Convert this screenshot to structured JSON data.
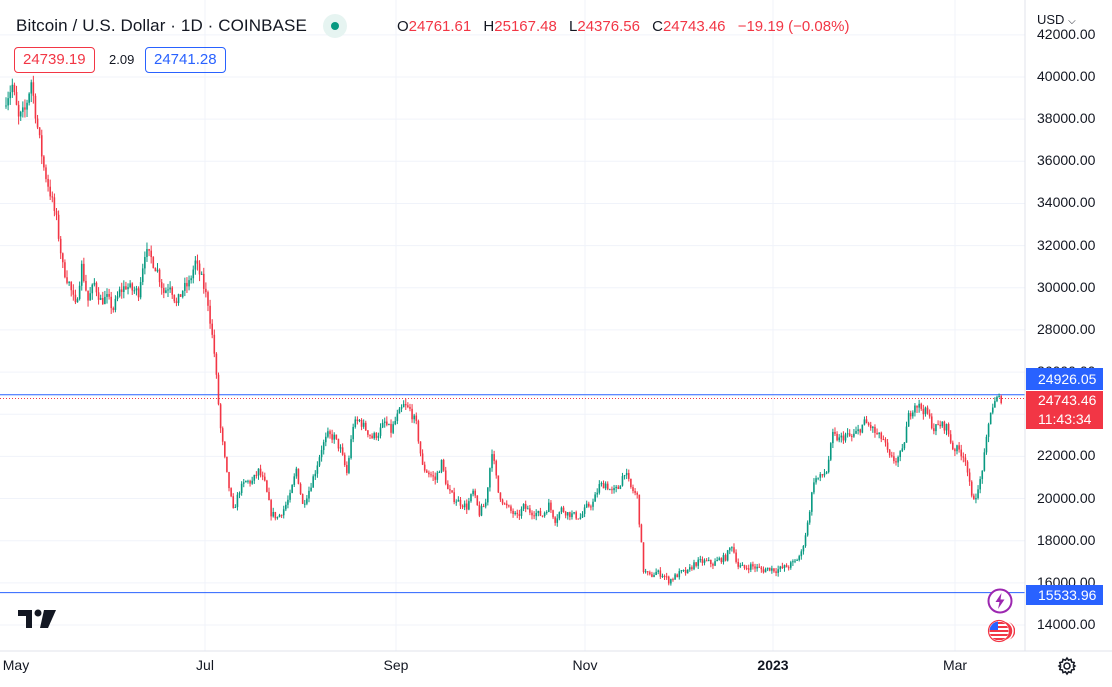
{
  "header": {
    "title": "Bitcoin / U.S. Dollar · 1D · COINBASE",
    "ohlc": {
      "o_label": "O",
      "o_value": "24761.61",
      "h_label": "H",
      "h_value": "25167.48",
      "l_label": "L",
      "l_value": "24376.56",
      "c_label": "C",
      "c_value": "24743.46",
      "change": "−19.19 (−0.08%)"
    },
    "sell_price": "24739.19",
    "spread": "2.09",
    "buy_price": "24741.28",
    "currency_selector": "USD"
  },
  "colors": {
    "up": "#089981",
    "down": "#f23645",
    "accent": "#2962ff",
    "grid": "#f0f3fa"
  },
  "price_axis": {
    "top_partial": "42000.00",
    "labels": [
      "40000.00",
      "38000.00",
      "36000.00",
      "34000.00",
      "32000.00",
      "30000.00",
      "28000.00",
      "26000.00",
      "22000.00",
      "20000.00",
      "18000.00",
      "16000.00",
      "14000.00"
    ]
  },
  "time_axis": {
    "labels": [
      "May",
      "Jul",
      "Sep",
      "Nov",
      "2023",
      "Mar"
    ]
  },
  "markers": {
    "line_blue_value": "24926.05",
    "last_price_value": "24743.46",
    "countdown": "11:43:34",
    "support_value": "15533.96"
  },
  "icons": [
    "tradingview-logo-icon",
    "lightning-icon",
    "us-flag-icon",
    "gear-icon",
    "live-status-icon",
    "chevron-down-icon"
  ],
  "chart_data": {
    "type": "candlestick",
    "title": "Bitcoin / U.S. Dollar · 1D · COINBASE",
    "xlabel": "",
    "ylabel": "",
    "x_ticks": [
      "May",
      "Jul",
      "Sep",
      "Nov",
      "2023",
      "Mar"
    ],
    "ylim": [
      13000,
      42000
    ],
    "y_ticks": [
      14000,
      16000,
      18000,
      20000,
      22000,
      24000,
      26000,
      28000,
      30000,
      32000,
      34000,
      36000,
      38000,
      40000,
      42000
    ],
    "grid": true,
    "horizontal_lines": [
      24926.05,
      15533.96
    ],
    "last_close": 24743.46,
    "close_path": [
      [
        0,
        39000
      ],
      [
        3,
        39600
      ],
      [
        6,
        38000
      ],
      [
        9,
        38400
      ],
      [
        12,
        39800
      ],
      [
        15,
        37600
      ],
      [
        18,
        35700
      ],
      [
        21,
        34500
      ],
      [
        24,
        33200
      ],
      [
        27,
        31000
      ],
      [
        30,
        30200
      ],
      [
        33,
        29100
      ],
      [
        36,
        31000
      ],
      [
        39,
        29400
      ],
      [
        42,
        30200
      ],
      [
        45,
        29400
      ],
      [
        48,
        29500
      ],
      [
        51,
        29000
      ],
      [
        54,
        29800
      ],
      [
        57,
        30100
      ],
      [
        60,
        29900
      ],
      [
        63,
        29800
      ],
      [
        66,
        31700
      ],
      [
        69,
        31400
      ],
      [
        72,
        30800
      ],
      [
        75,
        29800
      ],
      [
        78,
        30200
      ],
      [
        81,
        29200
      ],
      [
        84,
        29900
      ],
      [
        87,
        30200
      ],
      [
        90,
        31200
      ],
      [
        93,
        30400
      ],
      [
        96,
        29300
      ],
      [
        99,
        26900
      ],
      [
        102,
        23300
      ],
      [
        105,
        21100
      ],
      [
        108,
        19400
      ],
      [
        111,
        20400
      ],
      [
        114,
        20800
      ],
      [
        117,
        20800
      ],
      [
        120,
        21300
      ],
      [
        123,
        20700
      ],
      [
        126,
        19300
      ],
      [
        129,
        19100
      ],
      [
        132,
        19500
      ],
      [
        135,
        20100
      ],
      [
        138,
        21400
      ],
      [
        141,
        19700
      ],
      [
        144,
        20400
      ],
      [
        147,
        21300
      ],
      [
        150,
        22400
      ],
      [
        153,
        23000
      ],
      [
        156,
        22900
      ],
      [
        159,
        22300
      ],
      [
        162,
        21200
      ],
      [
        165,
        23500
      ],
      [
        168,
        23700
      ],
      [
        171,
        23300
      ],
      [
        174,
        22900
      ],
      [
        177,
        23100
      ],
      [
        180,
        23600
      ],
      [
        183,
        23200
      ],
      [
        186,
        23900
      ],
      [
        189,
        24400
      ],
      [
        192,
        24200
      ],
      [
        195,
        23500
      ],
      [
        198,
        21500
      ],
      [
        201,
        21200
      ],
      [
        204,
        20900
      ],
      [
        207,
        21700
      ],
      [
        210,
        20400
      ],
      [
        213,
        20000
      ],
      [
        216,
        19800
      ],
      [
        219,
        19600
      ],
      [
        222,
        20300
      ],
      [
        225,
        19300
      ],
      [
        228,
        19800
      ],
      [
        231,
        22300
      ],
      [
        234,
        20300
      ],
      [
        237,
        19700
      ],
      [
        240,
        19400
      ],
      [
        243,
        19100
      ],
      [
        246,
        19600
      ],
      [
        249,
        19400
      ],
      [
        252,
        19300
      ],
      [
        255,
        19200
      ],
      [
        258,
        19700
      ],
      [
        261,
        19000
      ],
      [
        264,
        19500
      ],
      [
        267,
        19300
      ],
      [
        270,
        19200
      ],
      [
        273,
        19100
      ],
      [
        276,
        19600
      ],
      [
        279,
        19800
      ],
      [
        282,
        20600
      ],
      [
        285,
        20700
      ],
      [
        288,
        20300
      ],
      [
        291,
        20500
      ],
      [
        294,
        21300
      ],
      [
        297,
        20500
      ],
      [
        300,
        20100
      ],
      [
        303,
        16600
      ],
      [
        306,
        16300
      ],
      [
        309,
        16500
      ],
      [
        312,
        16400
      ],
      [
        315,
        16100
      ],
      [
        318,
        16300
      ],
      [
        321,
        16500
      ],
      [
        324,
        16500
      ],
      [
        327,
        16900
      ],
      [
        330,
        17000
      ],
      [
        333,
        17000
      ],
      [
        336,
        16900
      ],
      [
        339,
        17100
      ],
      [
        342,
        17200
      ],
      [
        345,
        17800
      ],
      [
        348,
        16800
      ],
      [
        351,
        16700
      ],
      [
        354,
        16800
      ],
      [
        357,
        16700
      ],
      [
        360,
        16600
      ],
      [
        363,
        16700
      ],
      [
        366,
        16600
      ],
      [
        369,
        16700
      ],
      [
        372,
        16800
      ],
      [
        375,
        17000
      ],
      [
        378,
        17400
      ],
      [
        381,
        18800
      ],
      [
        384,
        20900
      ],
      [
        387,
        21000
      ],
      [
        390,
        21300
      ],
      [
        393,
        23000
      ],
      [
        396,
        22800
      ],
      [
        399,
        23000
      ],
      [
        402,
        22900
      ],
      [
        405,
        23200
      ],
      [
        408,
        23600
      ],
      [
        411,
        23400
      ],
      [
        414,
        23000
      ],
      [
        417,
        22800
      ],
      [
        420,
        21900
      ],
      [
        423,
        21800
      ],
      [
        426,
        22200
      ],
      [
        429,
        23900
      ],
      [
        432,
        24500
      ],
      [
        435,
        24300
      ],
      [
        438,
        24000
      ],
      [
        441,
        23300
      ],
      [
        444,
        23500
      ],
      [
        447,
        23400
      ],
      [
        450,
        22400
      ],
      [
        453,
        22300
      ],
      [
        456,
        21900
      ],
      [
        459,
        20000
      ],
      [
        462,
        20300
      ],
      [
        465,
        22000
      ],
      [
        468,
        24200
      ],
      [
        471,
        24700
      ],
      [
        473,
        24743
      ]
    ]
  }
}
